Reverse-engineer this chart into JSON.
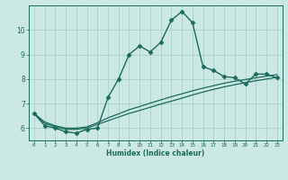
{
  "xlabel": "Humidex (Indice chaleur)",
  "bg_color": "#cce8e4",
  "grid_color": "#a0ccc8",
  "line_color": "#1a6b5a",
  "x_ticks": [
    0,
    1,
    2,
    3,
    4,
    5,
    6,
    7,
    8,
    9,
    10,
    11,
    12,
    13,
    14,
    15,
    16,
    17,
    18,
    19,
    20,
    21,
    22,
    23
  ],
  "ylim": [
    5.5,
    11.0
  ],
  "xlim": [
    -0.5,
    23.5
  ],
  "yticks": [
    6,
    7,
    8,
    9,
    10
  ],
  "series": [
    {
      "x": [
        0,
        1,
        2,
        3,
        4,
        5,
        6,
        7,
        8,
        9,
        10,
        11,
        12,
        13,
        14,
        15,
        16,
        17,
        18,
        19,
        20,
        21,
        22,
        23
      ],
      "y": [
        6.6,
        6.1,
        6.0,
        5.85,
        5.8,
        5.95,
        6.0,
        7.25,
        8.0,
        9.0,
        9.35,
        9.1,
        9.5,
        10.4,
        10.75,
        10.3,
        8.5,
        8.35,
        8.1,
        8.05,
        7.8,
        8.2,
        8.2,
        8.05
      ],
      "marker": "D",
      "markersize": 2.5,
      "linewidth": 1.0
    },
    {
      "x": [
        0,
        1,
        2,
        3,
        4,
        5,
        6,
        7,
        8,
        9,
        10,
        11,
        12,
        13,
        14,
        15,
        16,
        17,
        18,
        19,
        20,
        21,
        22,
        23
      ],
      "y": [
        6.6,
        6.2,
        6.05,
        5.95,
        5.95,
        6.0,
        6.15,
        6.3,
        6.45,
        6.6,
        6.72,
        6.85,
        6.98,
        7.1,
        7.22,
        7.35,
        7.47,
        7.58,
        7.68,
        7.77,
        7.85,
        7.93,
        8.0,
        8.07
      ],
      "marker": null,
      "markersize": 0,
      "linewidth": 0.9
    },
    {
      "x": [
        0,
        1,
        2,
        3,
        4,
        5,
        6,
        7,
        8,
        9,
        10,
        11,
        12,
        13,
        14,
        15,
        16,
        17,
        18,
        19,
        20,
        21,
        22,
        23
      ],
      "y": [
        6.6,
        6.25,
        6.1,
        6.0,
        6.0,
        6.05,
        6.22,
        6.42,
        6.58,
        6.75,
        6.88,
        7.02,
        7.15,
        7.28,
        7.4,
        7.52,
        7.63,
        7.73,
        7.83,
        7.91,
        7.98,
        8.05,
        8.12,
        8.18
      ],
      "marker": null,
      "markersize": 0,
      "linewidth": 0.9
    }
  ]
}
